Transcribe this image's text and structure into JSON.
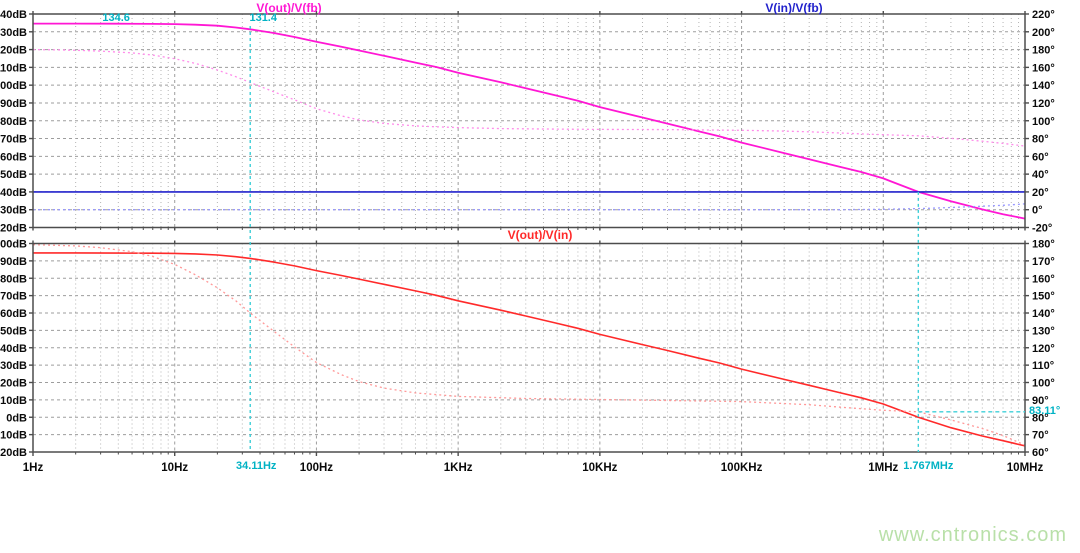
{
  "titles": {
    "vout_vfb": "V(out)/V(fb)",
    "vin_vfb": "V(in)/V(fb)",
    "vout_vin": "V(out)/V(in)"
  },
  "watermark": "www.cntronics.com",
  "colors": {
    "magenta": "#ff17d4",
    "magenta_light": "#ff8cea",
    "blue": "#2222cc",
    "blue_light": "#9898ff",
    "red": "#ff2a2a",
    "red_light": "#ff9898",
    "cyan_line": "#3ecfd8",
    "cyan_text": "#00b2c4",
    "grid": "#9d9d9d",
    "grid_minor": "#b5b5b5",
    "border": "#4d4d4d",
    "label": "#0a0a0a",
    "watermark_green": "#b9e0a9"
  },
  "cursor_labels": {
    "gain_low_freq": "134.6",
    "gain_at_cursor": "131.4",
    "freq_cursor1": "34.11Hz",
    "freq_cursor2": "1.767MHz",
    "phase_margin": "83.11°"
  },
  "cursors": {
    "v1_hz": 34.11,
    "v2_hz": 1767000,
    "h1_deg": 83.11
  },
  "chart_data": [
    {
      "type": "line",
      "title": "V(out)/V(fb) and V(in)/V(fb) vs frequency",
      "x_axis": {
        "scale": "log",
        "min_hz": 1,
        "max_hz": 10000000
      },
      "y_left": {
        "unit": "dB",
        "max": 140,
        "min": 20,
        "step": 10,
        "tick_labels": [
          "140dB",
          "130dB",
          "120dB",
          "110dB",
          "100dB",
          "90dB",
          "80dB",
          "70dB",
          "60dB",
          "50dB",
          "40dB",
          "30dB",
          "20dB"
        ]
      },
      "y_right": {
        "unit": "deg",
        "max": 220,
        "min": -20,
        "step": 20,
        "tick_labels": [
          "220°",
          "200°",
          "180°",
          "160°",
          "140°",
          "120°",
          "100°",
          "80°",
          "60°",
          "40°",
          "20°",
          "0°",
          "-20°"
        ]
      },
      "series": [
        {
          "id": "curve-vout-vfb-gain",
          "name": "V(out)/V(fb) gain",
          "axis": "left",
          "style": "solid",
          "color": "#ff17d4",
          "width": 1.8,
          "points": [
            [
              1,
              134.6
            ],
            [
              2,
              134.6
            ],
            [
              4,
              134.55
            ],
            [
              7,
              134.45
            ],
            [
              10,
              134.3
            ],
            [
              14,
              134.0
            ],
            [
              20,
              133.4
            ],
            [
              27,
              132.4
            ],
            [
              34.11,
              131.4
            ],
            [
              50,
              129.3
            ],
            [
              70,
              127.1
            ],
            [
              100,
              124.4
            ],
            [
              150,
              121.6
            ],
            [
              200,
              119.5
            ],
            [
              300,
              116.5
            ],
            [
              500,
              112.7
            ],
            [
              700,
              110.2
            ],
            [
              1000,
              107.0
            ],
            [
              2000,
              101.6
            ],
            [
              3000,
              98.3
            ],
            [
              5000,
              94.0
            ],
            [
              7000,
              91.2
            ],
            [
              10000,
              87.7
            ],
            [
              20000,
              81.8
            ],
            [
              30000,
              78.4
            ],
            [
              50000,
              74.0
            ],
            [
              70000,
              71.2
            ],
            [
              100000,
              67.7
            ],
            [
              200000,
              61.8
            ],
            [
              300000,
              58.4
            ],
            [
              500000,
              54.0
            ],
            [
              700000,
              51.2
            ],
            [
              1000000,
              47.6
            ],
            [
              1767000,
              40.0
            ],
            [
              3000000,
              34.8
            ],
            [
              5000000,
              30.2
            ],
            [
              7000000,
              27.5
            ],
            [
              10000000,
              25.0
            ]
          ]
        },
        {
          "id": "curve-vout-vfb-phase",
          "name": "V(out)/V(fb) phase",
          "axis": "right",
          "style": "dashed",
          "color": "#ff8cea",
          "width": 1.3,
          "points": [
            [
              1,
              180
            ],
            [
              1.5,
              179.6
            ],
            [
              2,
              179.2
            ],
            [
              3,
              178.3
            ],
            [
              5,
              176.3
            ],
            [
              7,
              173.8
            ],
            [
              10,
              169.8
            ],
            [
              14,
              164.5
            ],
            [
              20,
              157
            ],
            [
              27,
              149.5
            ],
            [
              34.11,
              143
            ],
            [
              50,
              132.5
            ],
            [
              70,
              123.5
            ],
            [
              100,
              113.5
            ],
            [
              150,
              105.5
            ],
            [
              200,
              101
            ],
            [
              300,
              97
            ],
            [
              500,
              94.2
            ],
            [
              700,
              93.2
            ],
            [
              1000,
              92.3
            ],
            [
              2000,
              91.2
            ],
            [
              5000,
              90.6
            ],
            [
              10000,
              90.3
            ],
            [
              30000,
              90
            ],
            [
              100000,
              89.3
            ],
            [
              200000,
              88.4
            ],
            [
              300000,
              87.6
            ],
            [
              500000,
              86.2
            ],
            [
              700000,
              85.2
            ],
            [
              1000000,
              84.3
            ],
            [
              1767000,
              83.1
            ],
            [
              3000000,
              80.3
            ],
            [
              5000000,
              77
            ],
            [
              7000000,
              74.5
            ],
            [
              10000000,
              71.5
            ]
          ]
        },
        {
          "id": "curve-vin-vfb-gain",
          "name": "V(in)/V(fb) gain",
          "axis": "left",
          "style": "solid",
          "color": "#2222cc",
          "width": 1.6,
          "points": [
            [
              1,
              40
            ],
            [
              10000000,
              40
            ]
          ]
        },
        {
          "id": "curve-vin-vfb-phase",
          "name": "V(in)/V(fb) phase",
          "axis": "right",
          "style": "dashed",
          "color": "#9898ff",
          "width": 1.3,
          "points": [
            [
              1,
              0
            ],
            [
              500000,
              0
            ],
            [
              1000000,
              0.5
            ],
            [
              2000000,
              1.5
            ],
            [
              3000000,
              2.5
            ],
            [
              5000000,
              4
            ],
            [
              7000000,
              5
            ],
            [
              10000000,
              6.5
            ]
          ]
        }
      ]
    },
    {
      "type": "line",
      "title": "V(out)/V(in) vs frequency",
      "x_axis": {
        "scale": "log",
        "min_hz": 1,
        "max_hz": 10000000,
        "tick_labels": [
          "1Hz",
          "10Hz",
          "100Hz",
          "1KHz",
          "10KHz",
          "100KHz",
          "1MHz",
          "10MHz"
        ]
      },
      "y_left": {
        "unit": "dB",
        "max": 100,
        "min": -20,
        "step": 10,
        "tick_labels": [
          "100dB",
          "90dB",
          "80dB",
          "70dB",
          "60dB",
          "50dB",
          "40dB",
          "30dB",
          "20dB",
          "10dB",
          "0dB",
          "-10dB",
          "-20dB"
        ]
      },
      "y_right": {
        "unit": "deg",
        "max": 180,
        "min": 60,
        "step": 10,
        "tick_labels": [
          "180°",
          "170°",
          "160°",
          "150°",
          "140°",
          "130°",
          "120°",
          "110°",
          "100°",
          "90°",
          "80°",
          "70°",
          "60°"
        ]
      },
      "series": [
        {
          "id": "curve-vout-vin-gain",
          "name": "V(out)/V(in) gain",
          "axis": "left",
          "style": "solid",
          "color": "#ff2a2a",
          "width": 1.6,
          "points": [
            [
              1,
              94.6
            ],
            [
              2,
              94.6
            ],
            [
              4,
              94.5
            ],
            [
              7,
              94.4
            ],
            [
              10,
              94.3
            ],
            [
              14,
              94.0
            ],
            [
              20,
              93.4
            ],
            [
              27,
              92.4
            ],
            [
              34.11,
              91.4
            ],
            [
              50,
              89.3
            ],
            [
              70,
              87.1
            ],
            [
              100,
              84.4
            ],
            [
              150,
              81.6
            ],
            [
              200,
              79.5
            ],
            [
              300,
              76.5
            ],
            [
              500,
              72.7
            ],
            [
              700,
              70.2
            ],
            [
              1000,
              67.0
            ],
            [
              2000,
              61.6
            ],
            [
              3000,
              58.3
            ],
            [
              5000,
              54.0
            ],
            [
              7000,
              51.2
            ],
            [
              10000,
              47.7
            ],
            [
              20000,
              41.8
            ],
            [
              30000,
              38.4
            ],
            [
              50000,
              34.0
            ],
            [
              70000,
              31.2
            ],
            [
              100000,
              27.7
            ],
            [
              200000,
              21.8
            ],
            [
              300000,
              18.4
            ],
            [
              500000,
              14.0
            ],
            [
              700000,
              11.2
            ],
            [
              1000000,
              7.6
            ],
            [
              1767000,
              0.0
            ],
            [
              3000000,
              -6.0
            ],
            [
              5000000,
              -10.8
            ],
            [
              7000000,
              -13.5
            ],
            [
              10000000,
              -16.5
            ]
          ]
        },
        {
          "id": "curve-vout-vin-phase",
          "name": "V(out)/V(in) phase",
          "axis": "right",
          "style": "dashed",
          "color": "#ff9898",
          "width": 1.3,
          "points": [
            [
              1,
              179.3
            ],
            [
              2,
              178.6
            ],
            [
              3,
              177.6
            ],
            [
              5,
              175.3
            ],
            [
              7,
              172.5
            ],
            [
              10,
              168
            ],
            [
              14,
              162
            ],
            [
              20,
              154.5
            ],
            [
              27,
              147
            ],
            [
              34.11,
              140
            ],
            [
              50,
              129.5
            ],
            [
              70,
              120.5
            ],
            [
              100,
              111.5
            ],
            [
              150,
              104.5
            ],
            [
              200,
              100.5
            ],
            [
              300,
              96.8
            ],
            [
              500,
              94
            ],
            [
              1000,
              92
            ],
            [
              3000,
              90.8
            ],
            [
              10000,
              90.2
            ],
            [
              100000,
              89
            ],
            [
              300000,
              87.2
            ],
            [
              500000,
              85.8
            ],
            [
              1000000,
              84
            ],
            [
              1767000,
              83.11
            ],
            [
              3000000,
              78.5
            ],
            [
              5000000,
              73.5
            ],
            [
              7000000,
              69.5
            ],
            [
              10000000,
              64
            ]
          ]
        }
      ]
    }
  ]
}
